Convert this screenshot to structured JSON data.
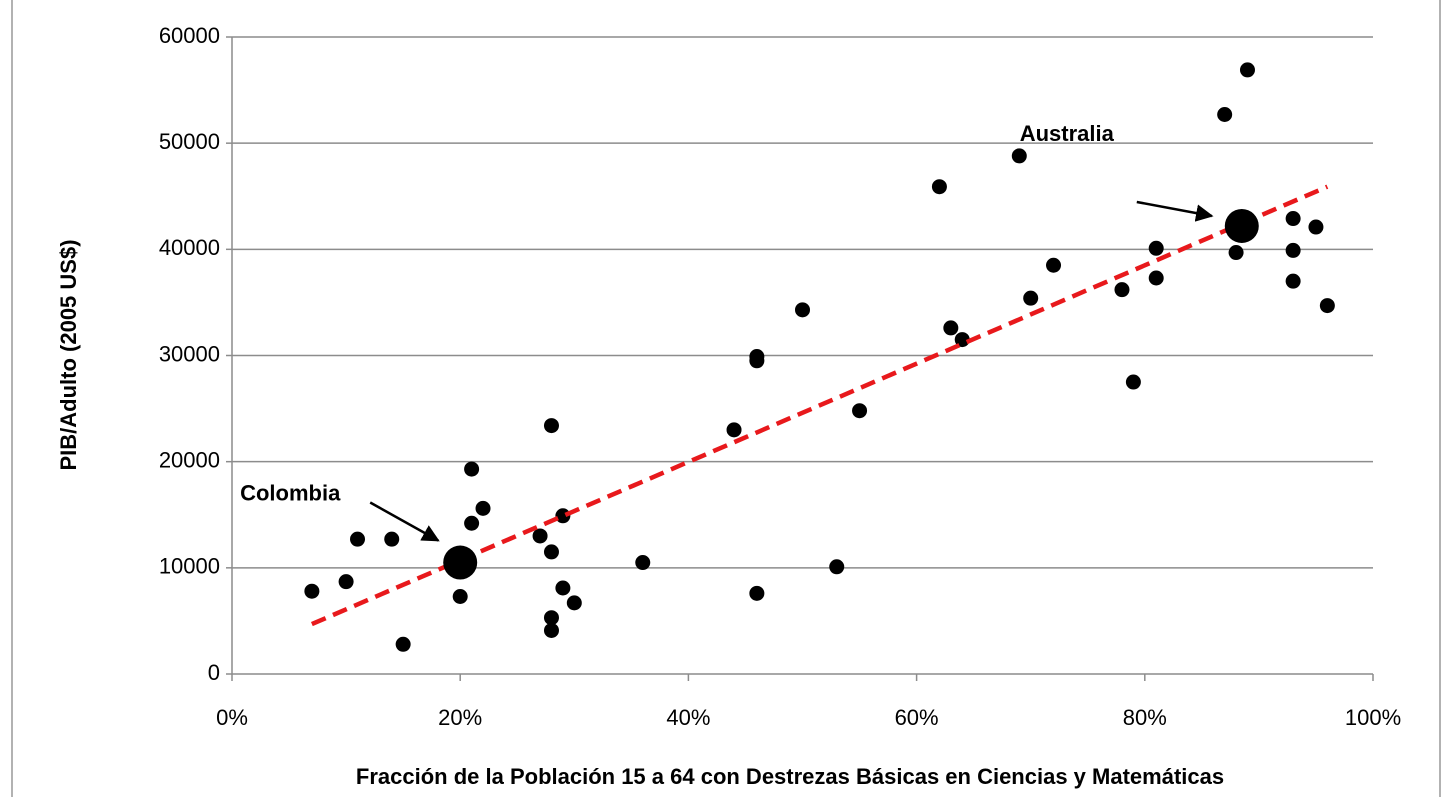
{
  "chart_data": {
    "type": "scatter",
    "xlabel": "Fracción de la Población 15 a 64 con Destrezas Básicas en Ciencias y Matemáticas",
    "ylabel": "PIB/Adulto (2005 US$)",
    "xlim": [
      0,
      100
    ],
    "ylim": [
      0,
      60000
    ],
    "xticks": [
      {
        "value": 0,
        "label": "0%"
      },
      {
        "value": 20,
        "label": "20%"
      },
      {
        "value": 40,
        "label": "40%"
      },
      {
        "value": 60,
        "label": "60%"
      },
      {
        "value": 80,
        "label": "80%"
      },
      {
        "value": 100,
        "label": "100%"
      }
    ],
    "yticks": [
      0,
      10000,
      20000,
      30000,
      40000,
      50000,
      60000
    ],
    "grid": true,
    "series": [
      {
        "color": "#000000",
        "x": [
          7,
          10,
          11,
          14,
          15,
          20,
          21,
          21,
          22,
          27,
          28,
          28,
          28,
          28,
          29,
          29,
          30,
          36,
          44,
          46,
          46,
          46,
          50,
          53,
          55,
          62,
          63,
          64,
          69,
          70,
          72,
          78,
          79,
          81,
          81,
          87,
          88,
          89,
          93,
          93,
          93,
          95,
          96
        ],
        "values": [
          7800,
          8700,
          12700,
          12700,
          2800,
          7300,
          19300,
          14200,
          15600,
          13000,
          23400,
          11500,
          5300,
          4100,
          14900,
          8100,
          6700,
          10500,
          23000,
          29900,
          29500,
          7600,
          34300,
          10100,
          24800,
          45900,
          32600,
          31500,
          48800,
          35400,
          38500,
          36200,
          27500,
          40100,
          37300,
          52700,
          39700,
          56900,
          42900,
          39900,
          37000,
          42100,
          34700
        ]
      }
    ],
    "highlights": [
      {
        "label": "Colombia",
        "x": 20,
        "value": 10500,
        "color": "#000000"
      },
      {
        "label": "Australia",
        "x": 88.5,
        "value": 42200,
        "color": "#000000"
      }
    ],
    "trendline": {
      "color": "#e8191c",
      "x": [
        7,
        96
      ],
      "values": [
        4700,
        45900
      ]
    }
  }
}
